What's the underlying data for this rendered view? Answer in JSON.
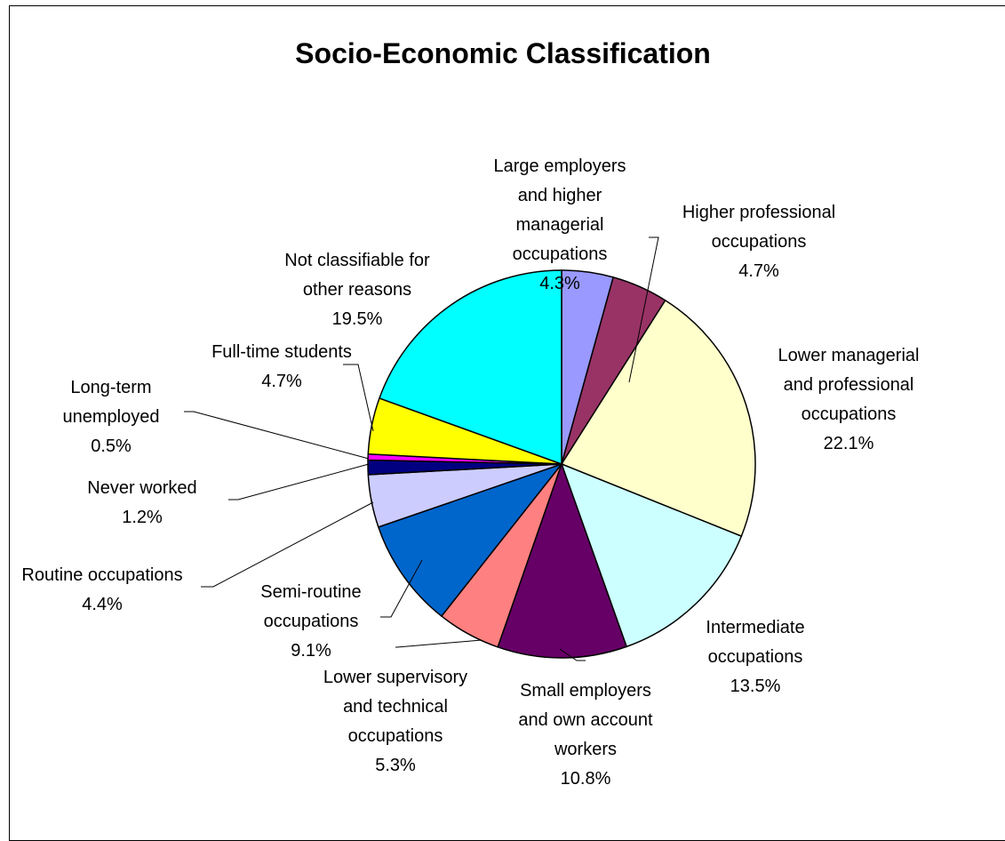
{
  "chart_data": {
    "type": "pie",
    "title": "Socio-Economic Classification",
    "categories": [
      "Large employers and higher managerial occupations",
      "Higher professional occupations",
      "Lower managerial and professional occupations",
      "Intermediate occupations",
      "Small employers and own account workers",
      "Lower supervisory and technical occupations",
      "Semi-routine occupations",
      "Routine occupations",
      "Never worked",
      "Long-term unemployed",
      "Full-time students",
      "Not classifiable for other reasons"
    ],
    "values": [
      4.3,
      4.7,
      22.1,
      13.5,
      10.8,
      5.3,
      9.1,
      4.4,
      1.2,
      0.5,
      4.7,
      19.5
    ],
    "value_labels": [
      "4.3%",
      "4.7%",
      "22.1%",
      "13.5%",
      "10.8%",
      "5.3%",
      "9.1%",
      "4.4%",
      "1.2%",
      "0.5%",
      "4.7%",
      "19.5%"
    ],
    "label_lines": [
      [
        "Large employers",
        "and higher",
        "managerial",
        "occupations"
      ],
      [
        "Higher professional",
        "occupations"
      ],
      [
        "Lower managerial",
        "and professional",
        "occupations"
      ],
      [
        "Intermediate",
        "occupations"
      ],
      [
        "Small employers",
        "and own account",
        "workers"
      ],
      [
        "Lower supervisory",
        "and technical",
        "occupations"
      ],
      [
        "Semi-routine",
        "occupations"
      ],
      [
        "Routine occupations"
      ],
      [
        "Never worked"
      ],
      [
        "Long-term",
        "unemployed"
      ],
      [
        "Full-time students"
      ],
      [
        "Not classifiable for",
        "other reasons"
      ]
    ],
    "colors": [
      "#9999FF",
      "#993366",
      "#FFFFCC",
      "#CCFFFF",
      "#660066",
      "#FF8080",
      "#0066CC",
      "#CCCCFF",
      "#000080",
      "#FF00FF",
      "#FFFF00",
      "#00FFFF"
    ],
    "start_angle": "12 o'clock",
    "direction": "clockwise",
    "legend": "none"
  }
}
